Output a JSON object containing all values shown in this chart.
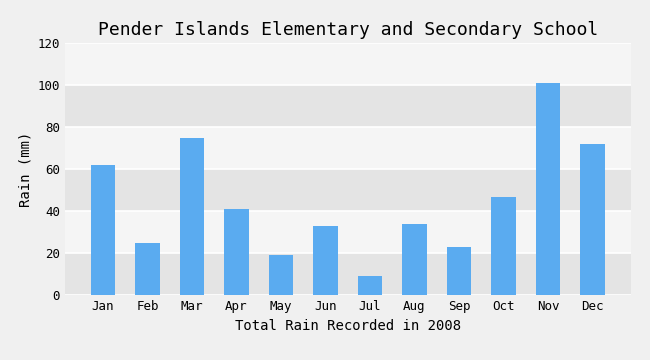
{
  "title": "Pender Islands Elementary and Secondary School",
  "xlabel": "Total Rain Recorded in 2008",
  "ylabel": "Rain (mm)",
  "months": [
    "Jan",
    "Feb",
    "Mar",
    "Apr",
    "May",
    "Jun",
    "Jul",
    "Aug",
    "Sep",
    "Oct",
    "Nov",
    "Dec"
  ],
  "values": [
    62,
    25,
    75,
    41,
    19,
    33,
    9,
    34,
    23,
    47,
    101,
    72
  ],
  "bar_color": "#5aabf0",
  "background_color": "#f0f0f0",
  "plot_bg_color": "#ebebeb",
  "band_color_light": "#f5f5f5",
  "band_color_dark": "#e4e4e4",
  "ylim": [
    0,
    120
  ],
  "yticks": [
    0,
    20,
    40,
    60,
    80,
    100,
    120
  ],
  "grid_color": "#ffffff",
  "title_fontsize": 13,
  "label_fontsize": 10,
  "tick_fontsize": 9,
  "bar_width": 0.55
}
